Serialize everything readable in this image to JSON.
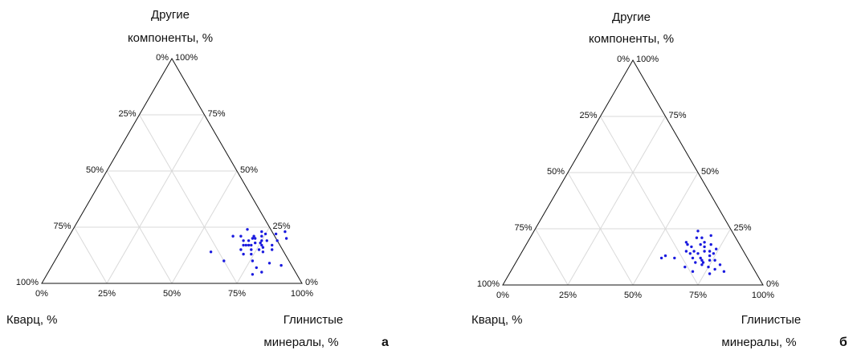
{
  "chart_data": [
    {
      "type": "scatter",
      "subtype": "ternary",
      "panel_label": "а",
      "axes": {
        "top": {
          "label_lines": [
            "Другие",
            "компоненты, %"
          ]
        },
        "bottom_right": {
          "label_lines": [
            "Глинистые",
            "минералы, %"
          ]
        },
        "bottom_left": {
          "label_lines": [
            "Кварц, %"
          ]
        }
      },
      "ticks": [
        "0%",
        "25%",
        "50%",
        "75%",
        "100%"
      ],
      "grid": true,
      "point_color": "#1a1adf",
      "points": [
        {
          "clay": 0.67,
          "other": 0.24
        },
        {
          "clay": 0.66,
          "other": 0.21
        },
        {
          "clay": 0.74,
          "other": 0.21
        },
        {
          "clay": 0.71,
          "other": 0.2
        },
        {
          "clay": 0.71,
          "other": 0.17
        },
        {
          "clay": 0.75,
          "other": 0.19
        },
        {
          "clay": 0.75,
          "other": 0.18
        },
        {
          "clay": 0.76,
          "other": 0.17
        },
        {
          "clay": 0.77,
          "other": 0.19
        },
        {
          "clay": 0.82,
          "other": 0.23
        },
        {
          "clay": 0.79,
          "other": 0.22
        },
        {
          "clay": 0.84,
          "other": 0.2
        },
        {
          "clay": 0.81,
          "other": 0.19
        },
        {
          "clay": 0.8,
          "other": 0.17
        },
        {
          "clay": 0.81,
          "other": 0.15
        },
        {
          "clay": 0.69,
          "other": 0.15
        },
        {
          "clay": 0.69,
          "other": 0.17
        },
        {
          "clay": 0.7,
          "other": 0.17
        },
        {
          "clay": 0.72,
          "other": 0.17
        },
        {
          "clay": 0.73,
          "other": 0.15
        },
        {
          "clay": 0.74,
          "other": 0.13
        },
        {
          "clay": 0.76,
          "other": 0.15
        },
        {
          "clay": 0.78,
          "other": 0.14
        },
        {
          "clay": 0.71,
          "other": 0.13
        },
        {
          "clay": 0.76,
          "other": 0.1
        },
        {
          "clay": 0.79,
          "other": 0.07
        },
        {
          "clay": 0.83,
          "other": 0.09
        },
        {
          "clay": 0.88,
          "other": 0.08
        },
        {
          "clay": 0.79,
          "other": 0.04
        },
        {
          "clay": 0.82,
          "other": 0.05
        },
        {
          "clay": 0.65,
          "other": 0.1
        },
        {
          "clay": 0.58,
          "other": 0.14
        },
        {
          "clay": 0.63,
          "other": 0.21
        },
        {
          "clay": 0.68,
          "other": 0.19
        },
        {
          "clay": 0.7,
          "other": 0.19
        },
        {
          "clay": 0.72,
          "other": 0.2
        },
        {
          "clay": 0.73,
          "other": 0.18
        },
        {
          "clay": 0.75,
          "other": 0.22
        },
        {
          "clay": 0.77,
          "other": 0.16
        },
        {
          "clay": 0.73,
          "other": 0.23
        },
        {
          "clay": 0.71,
          "other": 0.21
        }
      ]
    },
    {
      "type": "scatter",
      "subtype": "ternary",
      "panel_label": "б",
      "axes": {
        "top": {
          "label_lines": [
            "Другие",
            "компоненты, %"
          ]
        },
        "bottom_right": {
          "label_lines": [
            "Глинистые",
            "минералы, %"
          ]
        },
        "bottom_left": {
          "label_lines": [
            "Кварц, %"
          ]
        }
      },
      "ticks": [
        "0%",
        "25%",
        "50%",
        "75%",
        "100%"
      ],
      "grid": true,
      "point_color": "#1a1adf",
      "points": [
        {
          "clay": 0.63,
          "other": 0.24
        },
        {
          "clay": 0.61,
          "other": 0.19
        },
        {
          "clay": 0.64,
          "other": 0.21
        },
        {
          "clay": 0.66,
          "other": 0.21
        },
        {
          "clay": 0.69,
          "other": 0.22
        },
        {
          "clay": 0.62,
          "other": 0.18
        },
        {
          "clay": 0.64,
          "other": 0.17
        },
        {
          "clay": 0.67,
          "other": 0.18
        },
        {
          "clay": 0.69,
          "other": 0.17
        },
        {
          "clay": 0.71,
          "other": 0.18
        },
        {
          "clay": 0.63,
          "other": 0.15
        },
        {
          "clay": 0.66,
          "other": 0.15
        },
        {
          "clay": 0.68,
          "other": 0.14
        },
        {
          "clay": 0.7,
          "other": 0.15
        },
        {
          "clay": 0.72,
          "other": 0.15
        },
        {
          "clay": 0.74,
          "other": 0.14
        },
        {
          "clay": 0.67,
          "other": 0.12
        },
        {
          "clay": 0.7,
          "other": 0.12
        },
        {
          "clay": 0.71,
          "other": 0.11
        },
        {
          "clay": 0.74,
          "other": 0.11
        },
        {
          "clay": 0.76,
          "other": 0.11
        },
        {
          "clay": 0.72,
          "other": 0.09
        },
        {
          "clay": 0.75,
          "other": 0.08
        },
        {
          "clay": 0.78,
          "other": 0.07
        },
        {
          "clay": 0.79,
          "other": 0.09
        },
        {
          "clay": 0.82,
          "other": 0.06
        },
        {
          "clay": 0.77,
          "other": 0.05
        },
        {
          "clay": 0.7,
          "other": 0.06
        },
        {
          "clay": 0.66,
          "other": 0.08
        },
        {
          "clay": 0.6,
          "other": 0.12
        },
        {
          "clay": 0.56,
          "other": 0.13
        },
        {
          "clay": 0.55,
          "other": 0.12
        },
        {
          "clay": 0.68,
          "other": 0.19
        },
        {
          "clay": 0.65,
          "other": 0.14
        },
        {
          "clay": 0.73,
          "other": 0.13
        },
        {
          "clay": 0.72,
          "other": 0.1
        },
        {
          "clay": 0.69,
          "other": 0.1
        },
        {
          "clay": 0.74,
          "other": 0.16
        }
      ]
    }
  ]
}
